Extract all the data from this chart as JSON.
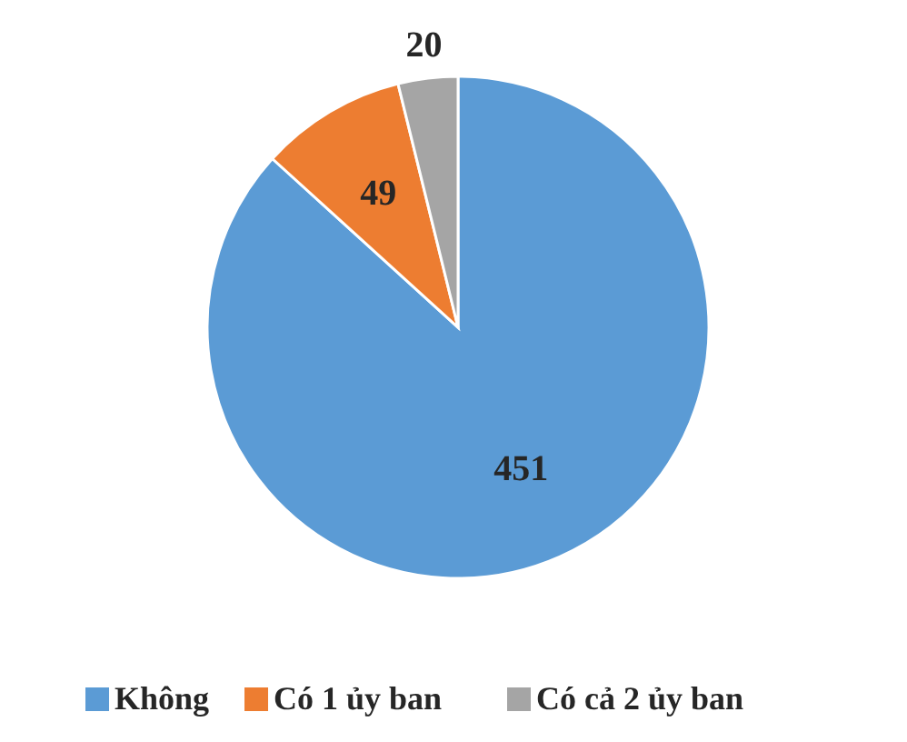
{
  "chart_data": {
    "type": "pie",
    "categories": [
      "Không",
      "Có 1 ủy ban",
      "Có cả 2 ủy ban"
    ],
    "values": [
      451,
      49,
      20
    ],
    "colors": [
      "#5b9bd5",
      "#ed7d31",
      "#a5a5a5"
    ],
    "data_labels": true,
    "legend": "bottom"
  }
}
